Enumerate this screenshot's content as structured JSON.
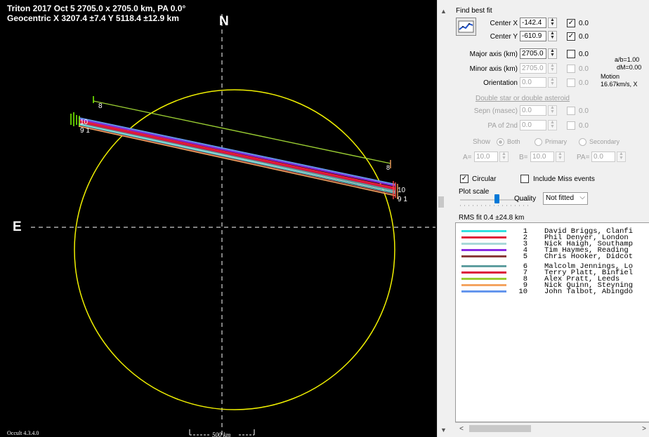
{
  "plot": {
    "title_line1": "Triton 2017 Oct 5  2705.0 x 2705.0 km, PA 0.0°",
    "title_line2": "Geocentric X  3207.4 ±7.4  Y 5118.4 ±12.9 km",
    "north_label": "N",
    "east_label": "E",
    "version_label": "Occult 4.3.4.0",
    "scale_label": "500 km",
    "chord_end_labels": {
      "left_8": "8",
      "left_10": "10",
      "left_9_1": "9 1",
      "right_8": "8",
      "right_10": "10",
      "right_9_1": "9 1"
    }
  },
  "controls": {
    "find_best_fit": "Find best fit",
    "center_x_label": "Center X",
    "center_x_value": "-142.4",
    "center_x_check": "0.0",
    "center_y_label": "Center Y",
    "center_y_value": "-610.9",
    "center_y_check": "0.0",
    "major_label": "Major axis (km)",
    "major_value": "2705.0",
    "major_check": "0.0",
    "minor_label": "Minor axis (km)",
    "minor_value": "2705.0",
    "minor_check": "0.0",
    "orient_label": "Orientation",
    "orient_value": "0.0",
    "orient_check": "0.0",
    "ratio_text": "a/b=1.00",
    "dm_text": "dM=0.00",
    "motion_label": "Motion",
    "motion_value": "16.67km/s, X",
    "double_star_link": "Double star  or  double asteroid",
    "sepn_label": "Sepn (masec)",
    "sepn_value": "0.0",
    "sepn_check": "0.0",
    "pa2_label": "PA of 2nd",
    "pa2_value": "0.0",
    "pa2_check": "0.0",
    "show_label": "Show",
    "show_both": "Both",
    "show_primary": "Primary",
    "show_secondary": "Secondary",
    "a_label": "A=",
    "a_value": "10.0",
    "b_label": "B=",
    "b_value": "10.0",
    "pa_label": "PA=",
    "pa_value": "0.0",
    "circular_label": "Circular",
    "circular_checked": true,
    "miss_label": "Include Miss events",
    "plot_scale_label": "Plot scale",
    "quality_label": "Quality",
    "quality_value": "Not fitted",
    "rms_text": "RMS fit 0.4 ±24.8 km"
  },
  "legend": [
    {
      "num": "1",
      "name": "David Briggs, Clanfi",
      "color": "#33e0e0"
    },
    {
      "num": "2",
      "name": "Phil Denyer, London",
      "color": "#e0203a"
    },
    {
      "num": "3",
      "name": "Nick Haigh, Southamp",
      "color": "#a8d8d8"
    },
    {
      "num": "4",
      "name": "Tim Haymes, Reading",
      "color": "#8a2be2"
    },
    {
      "num": "5",
      "name": "Chris Hooker, Didcot",
      "color": "#8b3a3a"
    },
    {
      "num": "6",
      "name": "Malcolm Jennings, Lo",
      "color": "#5f9ea0"
    },
    {
      "num": "7",
      "name": "Terry Platt, Binfiel",
      "color": "#dc143c"
    },
    {
      "num": "8",
      "name": "Alex Pratt, Leeds",
      "color": "#9acd32"
    },
    {
      "num": "9",
      "name": "Nick Quinn, Steyning",
      "color": "#f4a460"
    },
    {
      "num": "10",
      "name": "John Talbot, Abingdo",
      "color": "#6495ed"
    }
  ]
}
